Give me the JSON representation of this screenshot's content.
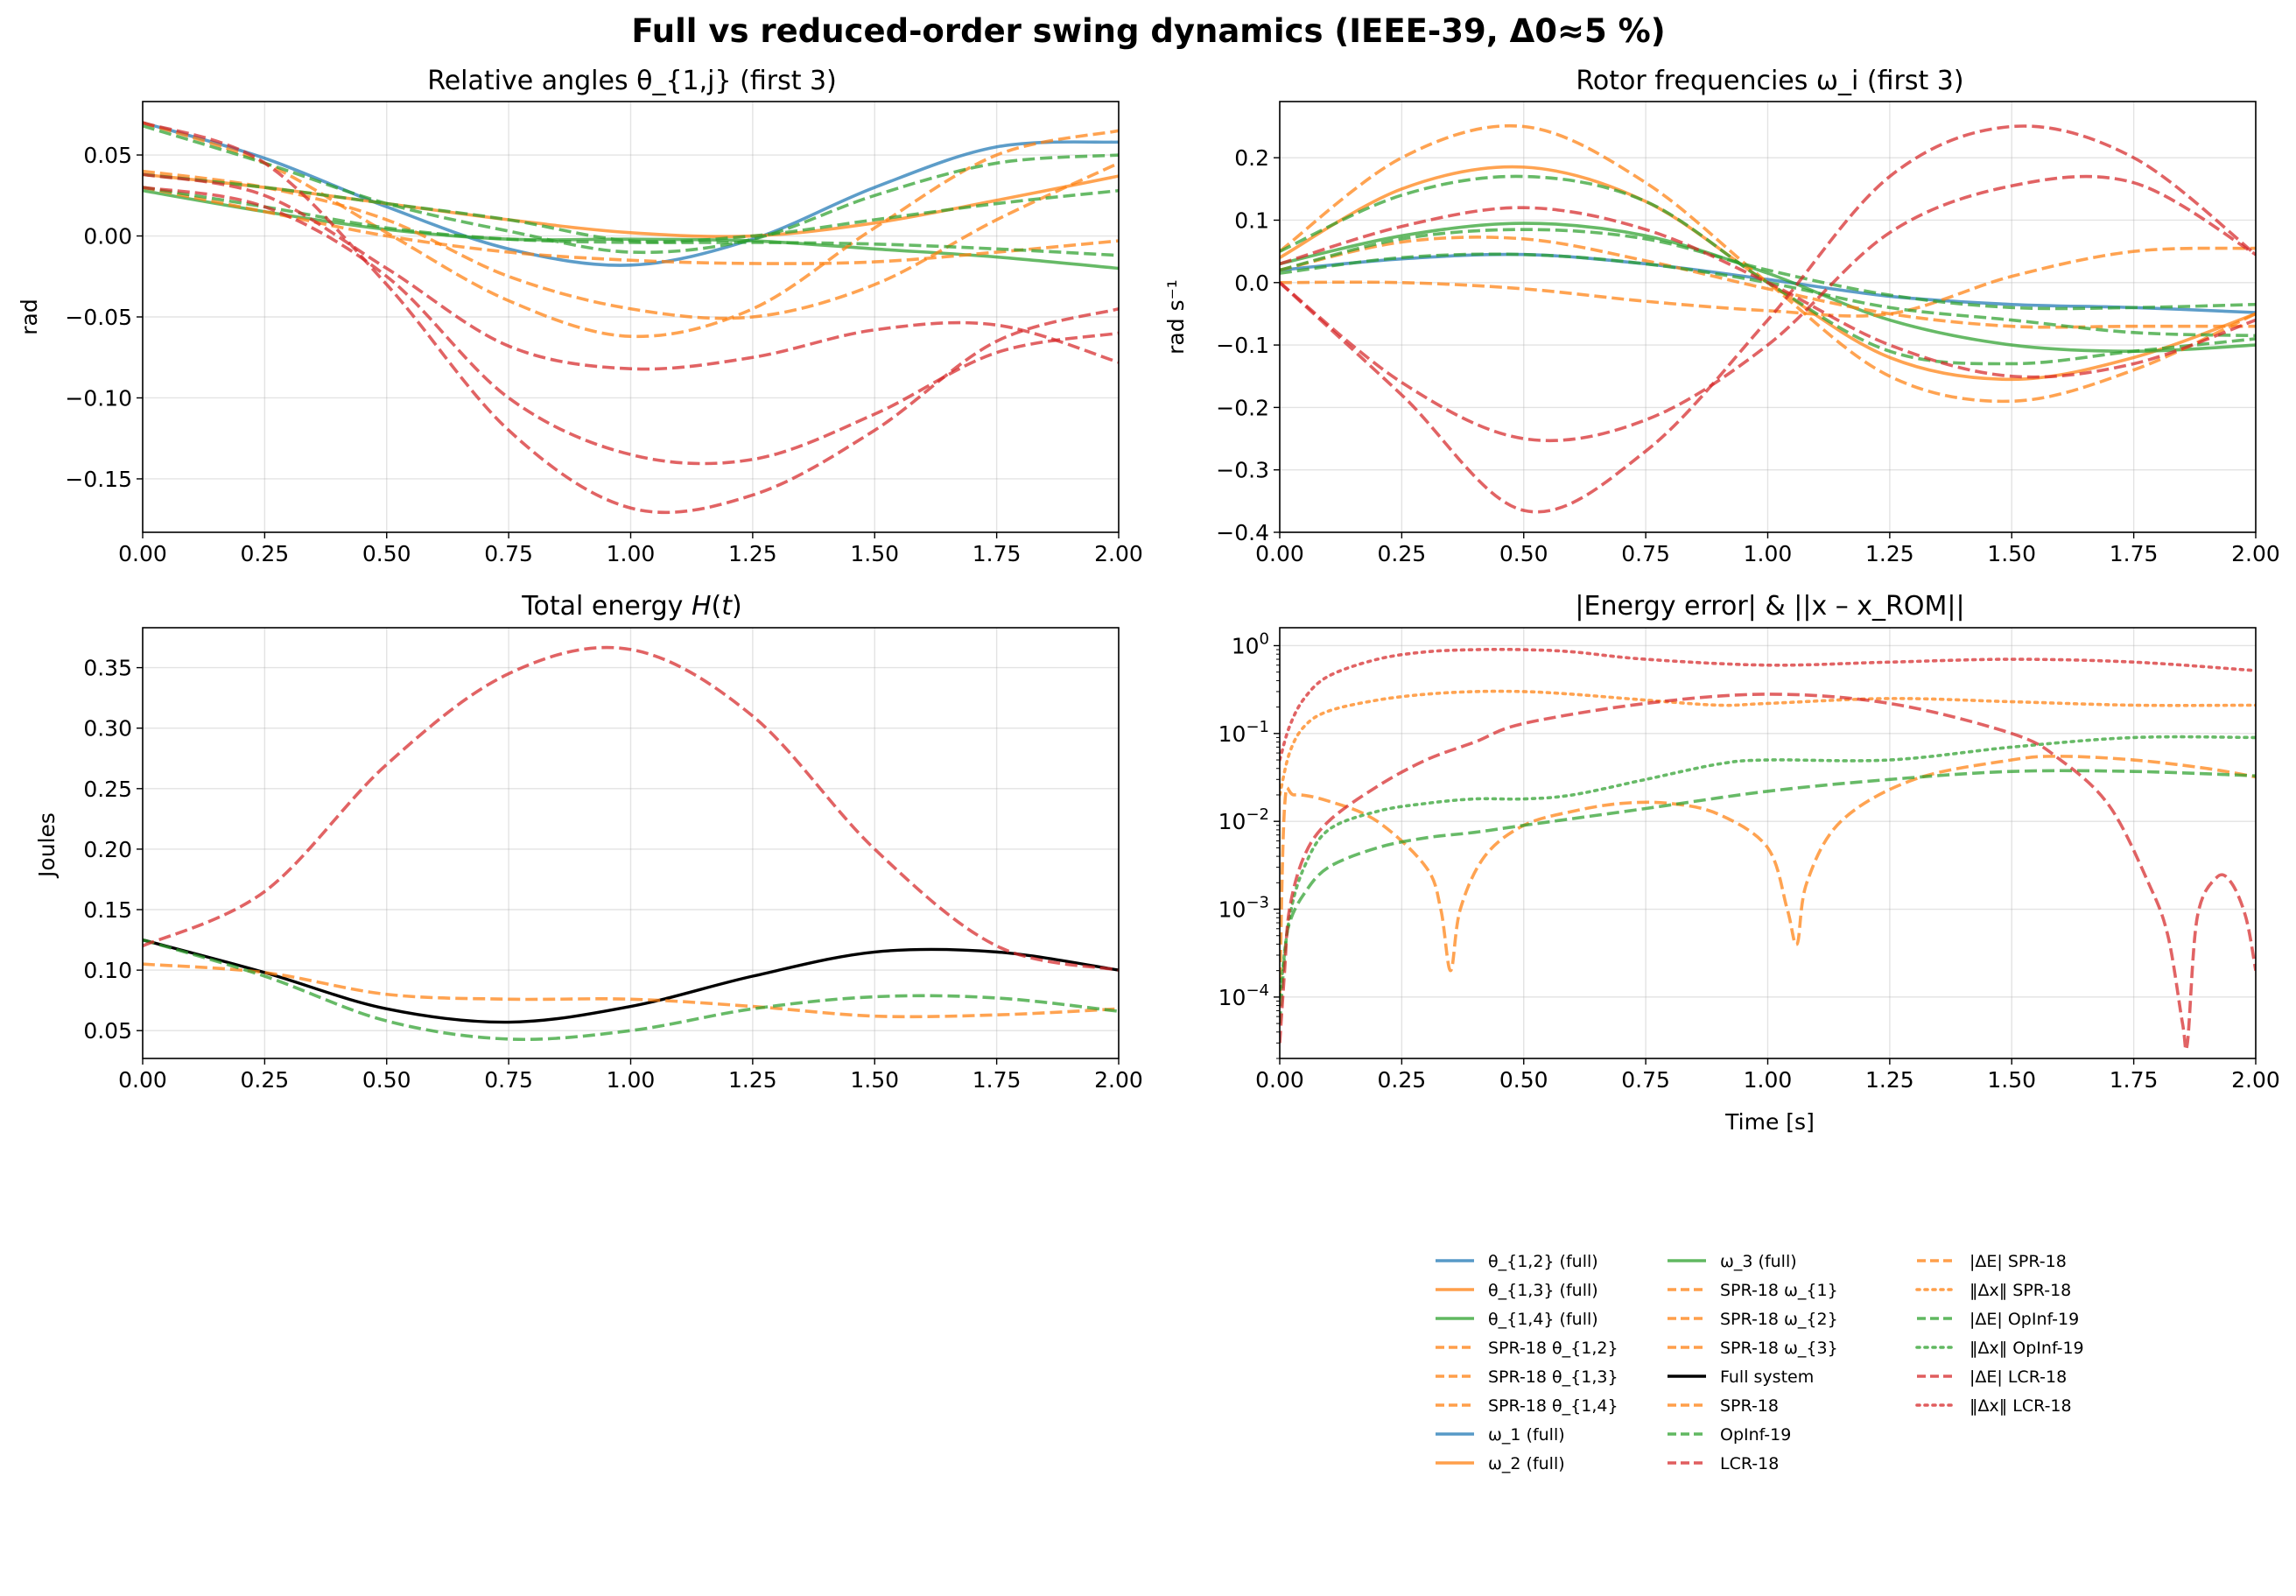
{
  "figure": {
    "suptitle": "Full vs reduced-order swing dynamics (IEEE-39, Δ0≈5 %)"
  },
  "colors": {
    "blue": "#1f77b4",
    "orange": "#ff7f0e",
    "green": "#2ca02c",
    "red": "#d62728",
    "black": "#000000"
  },
  "legend": {
    "placement": "lower-right (below axes)",
    "entries": [
      {
        "label": "θ_{1,2} (full)",
        "color": "blue",
        "style": "solid"
      },
      {
        "label": "θ_{1,3} (full)",
        "color": "orange",
        "style": "solid"
      },
      {
        "label": "θ_{1,4} (full)",
        "color": "green",
        "style": "solid"
      },
      {
        "label": "SPR-18 θ_{1,2}",
        "color": "orange",
        "style": "dashed"
      },
      {
        "label": "SPR-18 θ_{1,3}",
        "color": "orange",
        "style": "dashed"
      },
      {
        "label": "SPR-18 θ_{1,4}",
        "color": "orange",
        "style": "dashed"
      },
      {
        "label": "ω_1 (full)",
        "color": "blue",
        "style": "solid"
      },
      {
        "label": "ω_2 (full)",
        "color": "orange",
        "style": "solid"
      },
      {
        "label": "ω_3 (full)",
        "color": "green",
        "style": "solid"
      },
      {
        "label": "SPR-18 ω_{1}",
        "color": "orange",
        "style": "dashed"
      },
      {
        "label": "SPR-18 ω_{2}",
        "color": "orange",
        "style": "dashed"
      },
      {
        "label": "SPR-18 ω_{3}",
        "color": "orange",
        "style": "dashed"
      },
      {
        "label": "Full system",
        "color": "black",
        "style": "solid"
      },
      {
        "label": "SPR-18",
        "color": "orange",
        "style": "dashed"
      },
      {
        "label": "OpInf-19",
        "color": "green",
        "style": "dashed"
      },
      {
        "label": "LCR-18",
        "color": "red",
        "style": "dashed"
      },
      {
        "label": "|ΔE| SPR-18",
        "color": "orange",
        "style": "dashed"
      },
      {
        "label": "‖Δx‖ SPR-18",
        "color": "orange",
        "style": "dotted"
      },
      {
        "label": "|ΔE| OpInf-19",
        "color": "green",
        "style": "dashed"
      },
      {
        "label": "‖Δx‖ OpInf-19",
        "color": "green",
        "style": "dotted"
      },
      {
        "label": "|ΔE| LCR-18",
        "color": "red",
        "style": "dashed"
      },
      {
        "label": "‖Δx‖ LCR-18",
        "color": "red",
        "style": "dotted"
      }
    ]
  },
  "chart_data": [
    {
      "id": "angles",
      "type": "line",
      "title": "Relative angles θ_{1,j} (first 3)",
      "xlabel": "",
      "ylabel": "rad",
      "xlim": [
        0,
        2
      ],
      "ylim": [
        -0.183,
        0.083
      ],
      "xscale": "linear",
      "yscale": "linear",
      "grid": true,
      "xticks": [
        0,
        0.25,
        0.5,
        0.75,
        1,
        1.25,
        1.5,
        1.75,
        2
      ],
      "xticklabels": [
        "0.00",
        "0.25",
        "0.50",
        "0.75",
        "1.00",
        "1.25",
        "1.50",
        "1.75",
        "2.00"
      ],
      "yticks": [
        0.05,
        0,
        -0.05,
        -0.1,
        -0.15
      ],
      "yticklabels": [
        "0.05",
        "0.00",
        "−0.05",
        "−0.10",
        "−0.15"
      ],
      "x": [
        0,
        0.25,
        0.5,
        0.75,
        1,
        1.25,
        1.5,
        1.75,
        2
      ],
      "series": [
        {
          "color": "blue",
          "style": "solid",
          "values": [
            0.07,
            0.048,
            0.018,
            -0.008,
            -0.018,
            -0.002,
            0.03,
            0.055,
            0.058
          ]
        },
        {
          "color": "orange",
          "style": "solid",
          "values": [
            0.038,
            0.03,
            0.02,
            0.01,
            0.002,
            0.0,
            0.008,
            0.022,
            0.037
          ]
        },
        {
          "color": "green",
          "style": "solid",
          "values": [
            0.028,
            0.015,
            0.004,
            -0.002,
            -0.002,
            -0.003,
            -0.008,
            -0.013,
            -0.02
          ]
        },
        {
          "color": "orange",
          "style": "dashed",
          "values": [
            0.07,
            0.045,
            0.002,
            -0.04,
            -0.062,
            -0.045,
            0.005,
            0.05,
            0.065
          ]
        },
        {
          "color": "orange",
          "style": "dashed",
          "values": [
            0.03,
            0.015,
            0.0,
            -0.01,
            -0.015,
            -0.017,
            -0.016,
            -0.01,
            -0.003
          ]
        },
        {
          "color": "orange",
          "style": "dashed",
          "values": [
            0.04,
            0.03,
            0.01,
            -0.025,
            -0.045,
            -0.05,
            -0.03,
            0.01,
            0.045
          ]
        },
        {
          "color": "green",
          "style": "dashed",
          "values": [
            0.068,
            0.045,
            0.02,
            0.003,
            -0.01,
            -0.002,
            0.025,
            0.045,
            0.05
          ]
        },
        {
          "color": "green",
          "style": "dashed",
          "values": [
            0.038,
            0.03,
            0.02,
            0.01,
            -0.003,
            0.0,
            0.01,
            0.02,
            0.028
          ]
        },
        {
          "color": "green",
          "style": "dashed",
          "values": [
            0.03,
            0.018,
            0.005,
            -0.002,
            -0.004,
            -0.004,
            -0.005,
            -0.008,
            -0.012
          ]
        },
        {
          "color": "red",
          "style": "dashed",
          "values": [
            0.07,
            0.045,
            -0.03,
            -0.12,
            -0.168,
            -0.16,
            -0.12,
            -0.065,
            -0.045
          ]
        },
        {
          "color": "red",
          "style": "dashed",
          "values": [
            0.038,
            0.025,
            -0.02,
            -0.068,
            -0.082,
            -0.075,
            -0.058,
            -0.055,
            -0.078
          ]
        },
        {
          "color": "red",
          "style": "dashed",
          "values": [
            0.03,
            0.018,
            -0.025,
            -0.1,
            -0.135,
            -0.138,
            -0.11,
            -0.072,
            -0.06
          ]
        }
      ]
    },
    {
      "id": "frequencies",
      "type": "line",
      "title": "Rotor frequencies ω_i (first 3)",
      "xlabel": "",
      "ylabel": "rad s⁻¹",
      "xlim": [
        0,
        2
      ],
      "ylim": [
        -0.4,
        0.29
      ],
      "xscale": "linear",
      "yscale": "linear",
      "grid": true,
      "xticks": [
        0,
        0.25,
        0.5,
        0.75,
        1,
        1.25,
        1.5,
        1.75,
        2
      ],
      "xticklabels": [
        "0.00",
        "0.25",
        "0.50",
        "0.75",
        "1.00",
        "1.25",
        "1.50",
        "1.75",
        "2.00"
      ],
      "yticks": [
        0.2,
        0.1,
        0,
        -0.1,
        -0.2,
        -0.3,
        -0.4
      ],
      "yticklabels": [
        "0.2",
        "0.1",
        "0.0",
        "−0.1",
        "−0.2",
        "−0.3",
        "−0.4"
      ],
      "x": [
        0,
        0.25,
        0.5,
        0.75,
        1,
        1.25,
        1.5,
        1.75,
        2
      ],
      "series": [
        {
          "color": "blue",
          "style": "solid",
          "values": [
            0.02,
            0.038,
            0.045,
            0.03,
            0.005,
            -0.022,
            -0.035,
            -0.04,
            -0.048
          ]
        },
        {
          "color": "orange",
          "style": "solid",
          "values": [
            0.04,
            0.15,
            0.185,
            0.13,
            0.0,
            -0.12,
            -0.155,
            -0.12,
            -0.05
          ]
        },
        {
          "color": "green",
          "style": "solid",
          "values": [
            0.03,
            0.075,
            0.095,
            0.075,
            0.015,
            -0.06,
            -0.1,
            -0.11,
            -0.1
          ]
        },
        {
          "color": "orange",
          "style": "dashed",
          "values": [
            0.05,
            0.2,
            0.25,
            0.16,
            0.0,
            -0.15,
            -0.19,
            -0.14,
            -0.05
          ]
        },
        {
          "color": "orange",
          "style": "dashed",
          "values": [
            0.02,
            0.065,
            0.07,
            0.035,
            -0.01,
            -0.05,
            -0.07,
            -0.07,
            -0.07
          ]
        },
        {
          "color": "orange",
          "style": "dashed",
          "values": [
            0.0,
            0.0,
            -0.01,
            -0.03,
            -0.045,
            -0.05,
            0.01,
            0.05,
            0.055
          ]
        },
        {
          "color": "green",
          "style": "dashed",
          "values": [
            0.05,
            0.14,
            0.17,
            0.13,
            0.0,
            -0.11,
            -0.13,
            -0.11,
            -0.09
          ]
        },
        {
          "color": "green",
          "style": "dashed",
          "values": [
            0.02,
            0.07,
            0.085,
            0.07,
            0.02,
            -0.02,
            -0.04,
            -0.04,
            -0.035
          ]
        },
        {
          "color": "green",
          "style": "dashed",
          "values": [
            0.015,
            0.04,
            0.045,
            0.03,
            0.0,
            -0.04,
            -0.06,
            -0.08,
            -0.085
          ]
        },
        {
          "color": "red",
          "style": "dashed",
          "values": [
            0.0,
            -0.18,
            -0.365,
            -0.27,
            -0.06,
            0.17,
            0.25,
            0.2,
            0.045
          ]
        },
        {
          "color": "red",
          "style": "dashed",
          "values": [
            0.0,
            -0.16,
            -0.25,
            -0.22,
            -0.1,
            0.08,
            0.155,
            0.16,
            0.045
          ]
        },
        {
          "color": "red",
          "style": "dashed",
          "values": [
            0.03,
            0.09,
            0.12,
            0.085,
            0.0,
            -0.1,
            -0.15,
            -0.13,
            -0.06
          ]
        }
      ]
    },
    {
      "id": "energy",
      "type": "line",
      "title": "Total energy H(t)",
      "xlabel": "",
      "ylabel": "Joules",
      "xlim": [
        0,
        2
      ],
      "ylim": [
        0.027,
        0.383
      ],
      "xscale": "linear",
      "yscale": "linear",
      "grid": true,
      "xticks": [
        0,
        0.25,
        0.5,
        0.75,
        1,
        1.25,
        1.5,
        1.75,
        2
      ],
      "xticklabels": [
        "0.00",
        "0.25",
        "0.50",
        "0.75",
        "1.00",
        "1.25",
        "1.50",
        "1.75",
        "2.00"
      ],
      "yticks": [
        0.35,
        0.3,
        0.25,
        0.2,
        0.15,
        0.1,
        0.05
      ],
      "yticklabels": [
        "0.35",
        "0.30",
        "0.25",
        "0.20",
        "0.15",
        "0.10",
        "0.05"
      ],
      "x": [
        0,
        0.25,
        0.5,
        0.75,
        1,
        1.25,
        1.5,
        1.75,
        2
      ],
      "series": [
        {
          "name": "Full system",
          "color": "black",
          "style": "solid",
          "width": 3.4,
          "values": [
            0.125,
            0.098,
            0.068,
            0.057,
            0.07,
            0.095,
            0.115,
            0.115,
            0.1
          ]
        },
        {
          "name": "SPR-18",
          "color": "orange",
          "style": "dashed",
          "values": [
            0.105,
            0.098,
            0.08,
            0.076,
            0.076,
            0.07,
            0.062,
            0.063,
            0.068
          ]
        },
        {
          "name": "OpInf-19",
          "color": "green",
          "style": "dashed",
          "values": [
            0.125,
            0.095,
            0.058,
            0.043,
            0.05,
            0.068,
            0.078,
            0.077,
            0.066
          ]
        },
        {
          "name": "LCR-18",
          "color": "red",
          "style": "dashed",
          "values": [
            0.12,
            0.165,
            0.27,
            0.345,
            0.365,
            0.31,
            0.2,
            0.12,
            0.1
          ]
        }
      ]
    },
    {
      "id": "errors",
      "type": "line",
      "title": "|Energy error|  &  ||x – x_ROM||",
      "xlabel": "Time [s]",
      "ylabel": "",
      "xlim": [
        0,
        2
      ],
      "ylim": [
        2e-05,
        1.6
      ],
      "xscale": "linear",
      "yscale": "log",
      "grid": true,
      "xticks": [
        0,
        0.25,
        0.5,
        0.75,
        1,
        1.25,
        1.5,
        1.75,
        2
      ],
      "xticklabels": [
        "0.00",
        "0.25",
        "0.50",
        "0.75",
        "1.00",
        "1.25",
        "1.50",
        "1.75",
        "2.00"
      ],
      "yticks": [
        1,
        0.1,
        0.01,
        0.001,
        0.0001
      ],
      "yticklabels": [
        {
          "base": "10",
          "exp": "0"
        },
        {
          "base": "10",
          "exp": "−1"
        },
        {
          "base": "10",
          "exp": "−2"
        },
        {
          "base": "10",
          "exp": "−3"
        },
        {
          "base": "10",
          "exp": "−4"
        }
      ],
      "series": [
        {
          "name": "|ΔE| SPR-18",
          "color": "orange",
          "style": "dashed",
          "x": [
            0,
            0.01,
            0.03,
            0.1,
            0.2,
            0.3,
            0.33,
            0.35,
            0.37,
            0.42,
            0.5,
            0.6,
            0.7,
            0.8,
            0.9,
            1.0,
            1.04,
            1.06,
            1.08,
            1.15,
            1.3,
            1.5,
            1.6,
            1.75,
            1.9,
            2.0
          ],
          "values": [
            0.0001,
            0.015,
            0.02,
            0.017,
            0.01,
            0.003,
            0.001,
            0.0002,
            0.001,
            0.004,
            0.009,
            0.013,
            0.016,
            0.016,
            0.012,
            0.005,
            0.001,
            0.0004,
            0.002,
            0.01,
            0.03,
            0.05,
            0.055,
            0.05,
            0.04,
            0.032
          ]
        },
        {
          "name": "‖Δx‖ SPR-18",
          "color": "orange",
          "style": "dotted",
          "x": [
            0,
            0.02,
            0.05,
            0.1,
            0.2,
            0.3,
            0.4,
            0.5,
            0.6,
            0.75,
            0.9,
            1.0,
            1.25,
            1.5,
            1.75,
            2.0
          ],
          "values": [
            0.02,
            0.06,
            0.12,
            0.18,
            0.24,
            0.28,
            0.3,
            0.3,
            0.28,
            0.24,
            0.21,
            0.22,
            0.25,
            0.23,
            0.21,
            0.21
          ]
        },
        {
          "name": "|ΔE| OpInf-19",
          "color": "green",
          "style": "dashed",
          "x": [
            0,
            0.01,
            0.02,
            0.05,
            0.1,
            0.2,
            0.3,
            0.4,
            0.5,
            0.75,
            1.0,
            1.25,
            1.5,
            1.75,
            2.0
          ],
          "values": [
            5e-05,
            0.0003,
            0.0007,
            0.0015,
            0.003,
            0.005,
            0.0065,
            0.0075,
            0.009,
            0.014,
            0.022,
            0.03,
            0.037,
            0.037,
            0.033
          ]
        },
        {
          "name": "‖Δx‖ OpInf-19",
          "color": "green",
          "style": "dotted",
          "x": [
            0,
            0.02,
            0.05,
            0.1,
            0.2,
            0.3,
            0.4,
            0.5,
            0.6,
            0.75,
            0.9,
            1.0,
            1.25,
            1.5,
            1.75,
            2.0
          ],
          "values": [
            0.0001,
            0.0008,
            0.003,
            0.008,
            0.013,
            0.016,
            0.018,
            0.018,
            0.02,
            0.03,
            0.045,
            0.05,
            0.05,
            0.07,
            0.09,
            0.09
          ]
        },
        {
          "name": "|ΔE| LCR-18",
          "color": "red",
          "style": "dashed",
          "x": [
            0,
            0.01,
            0.02,
            0.05,
            0.1,
            0.2,
            0.3,
            0.4,
            0.5,
            0.75,
            1.0,
            1.25,
            1.5,
            1.6,
            1.7,
            1.78,
            1.82,
            1.85,
            1.86,
            1.88,
            1.92,
            1.95,
            1.98,
            2.0
          ],
          "values": [
            3e-05,
            0.0002,
            0.001,
            0.004,
            0.01,
            0.025,
            0.05,
            0.08,
            0.13,
            0.22,
            0.28,
            0.22,
            0.1,
            0.05,
            0.015,
            0.002,
            0.0005,
            5e-05,
            3e-05,
            0.0008,
            0.0023,
            0.002,
            0.0008,
            0.0002
          ]
        },
        {
          "name": "‖Δx‖ LCR-18",
          "color": "red",
          "style": "dotted",
          "x": [
            0,
            0.02,
            0.05,
            0.1,
            0.2,
            0.3,
            0.4,
            0.5,
            0.6,
            0.75,
            1.0,
            1.25,
            1.5,
            1.75,
            2.0
          ],
          "values": [
            0.05,
            0.12,
            0.25,
            0.45,
            0.7,
            0.85,
            0.9,
            0.9,
            0.85,
            0.7,
            0.6,
            0.65,
            0.7,
            0.65,
            0.52
          ]
        }
      ]
    }
  ]
}
